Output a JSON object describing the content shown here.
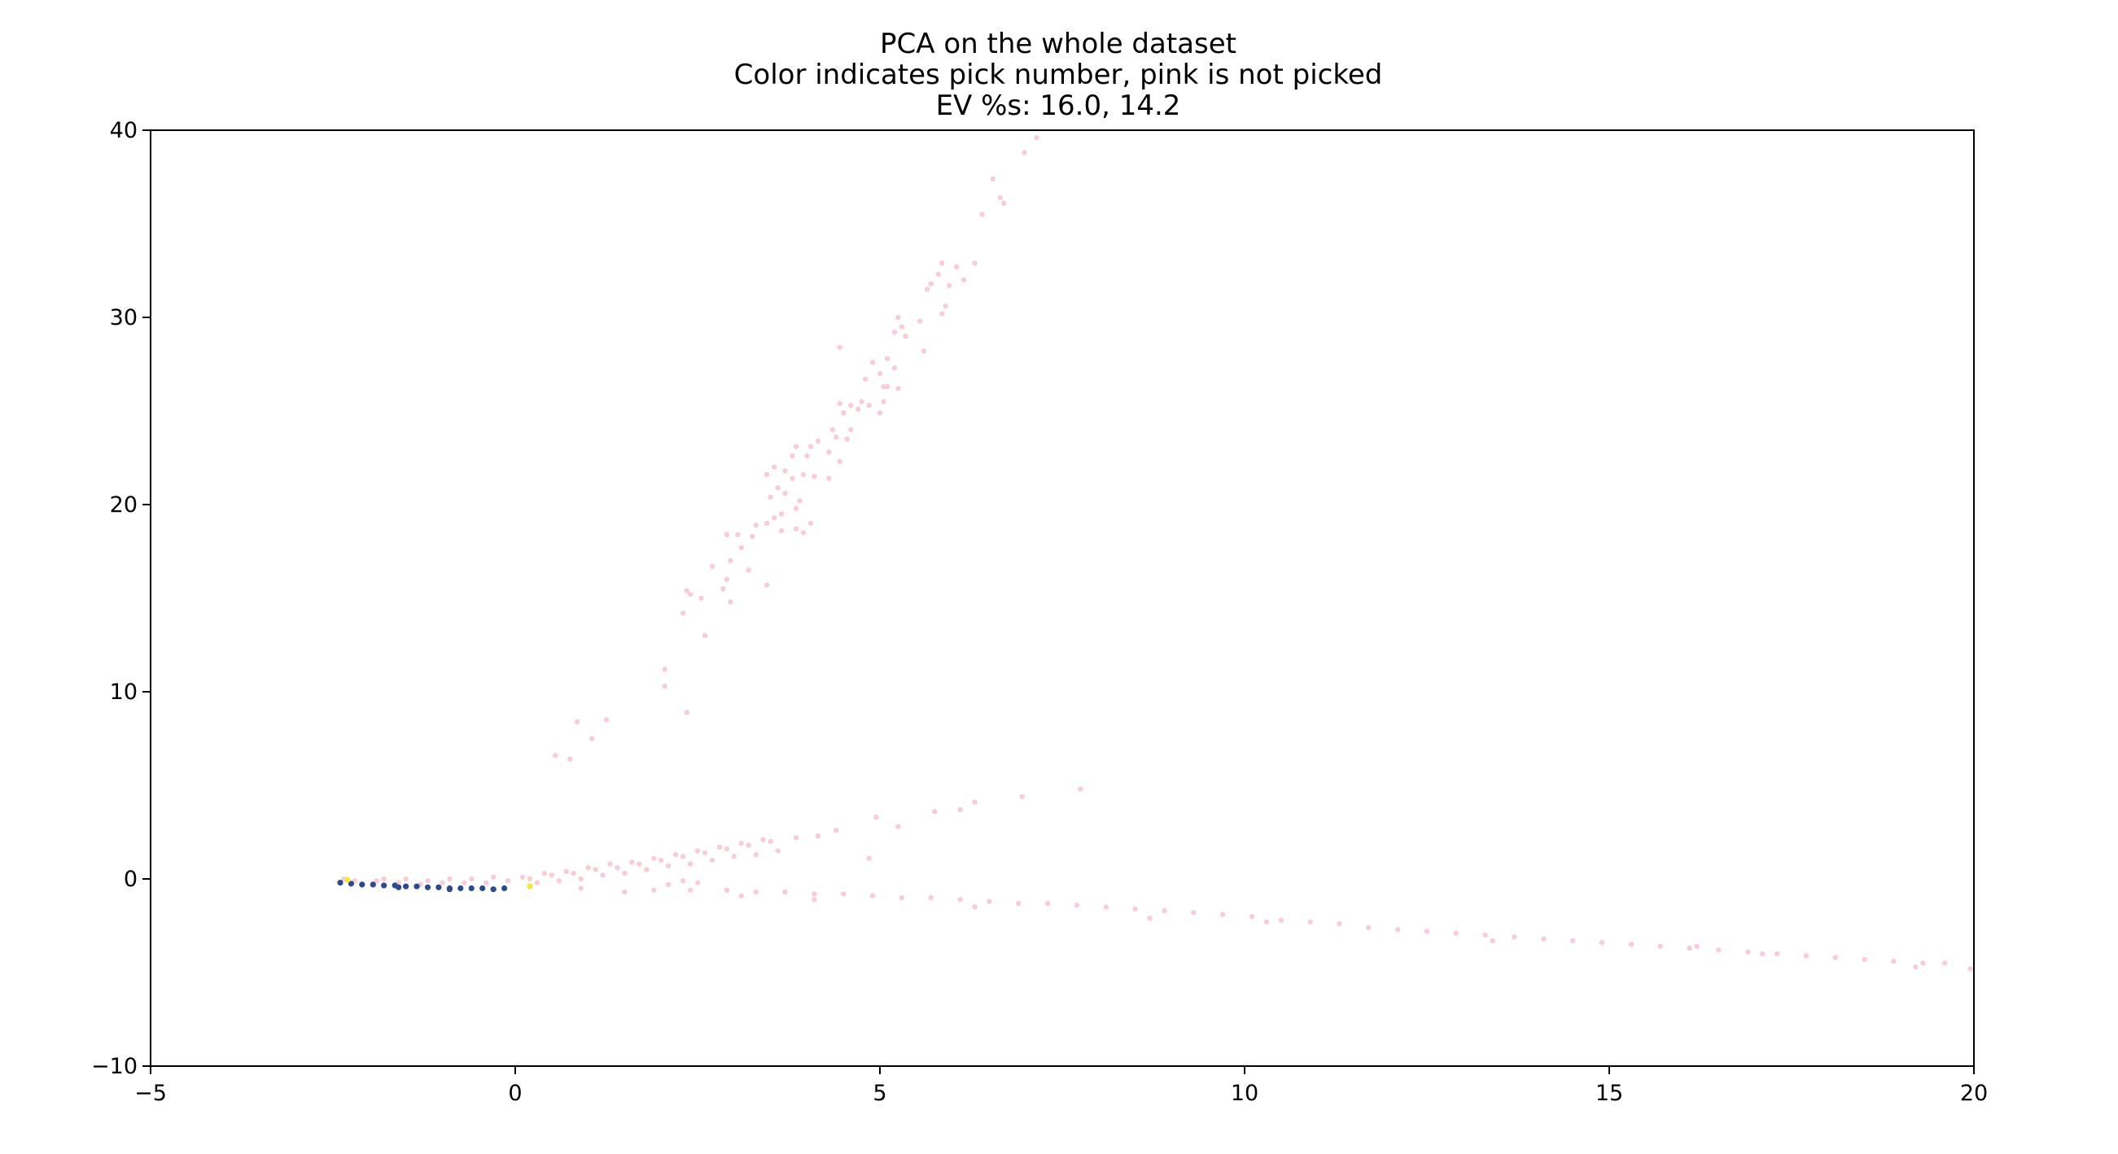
{
  "chart_data": {
    "type": "scatter",
    "title_lines": [
      "PCA on the whole dataset",
      "Color indicates pick number, pink is not picked",
      "EV %s: 16.0, 14.2"
    ],
    "xlabel": "",
    "ylabel": "",
    "xlim": [
      -5,
      20
    ],
    "ylim": [
      -10,
      40
    ],
    "x_ticks": [
      -5,
      0,
      5,
      10,
      15,
      20
    ],
    "y_ticks": [
      -10,
      0,
      10,
      20,
      30,
      40
    ],
    "x_tick_labels": [
      "−5",
      "0",
      "5",
      "10",
      "15",
      "20"
    ],
    "y_tick_labels": [
      "−10",
      "0",
      "10",
      "20",
      "30",
      "40"
    ],
    "grid": false,
    "colors": {
      "not_picked": "#f7cdd6",
      "picked_dark": "#1f2a6e",
      "picked_mid": "#2c4a8c",
      "picked_light": "#f2e53b"
    },
    "series": [
      {
        "label": "pink is not picked",
        "color": "#f7cdd6",
        "points": [
          [
            7.15,
            39.6
          ],
          [
            6.98,
            38.8
          ],
          [
            6.55,
            37.4
          ],
          [
            6.65,
            36.4
          ],
          [
            6.7,
            36.1
          ],
          [
            6.4,
            35.5
          ],
          [
            5.85,
            32.9
          ],
          [
            6.05,
            32.7
          ],
          [
            6.3,
            32.9
          ],
          [
            5.8,
            32.3
          ],
          [
            6.15,
            32.0
          ],
          [
            5.95,
            31.7
          ],
          [
            5.65,
            31.5
          ],
          [
            5.7,
            31.8
          ],
          [
            5.9,
            30.6
          ],
          [
            5.85,
            30.2
          ],
          [
            5.55,
            29.8
          ],
          [
            5.3,
            29.5
          ],
          [
            5.35,
            29.0
          ],
          [
            5.25,
            30.0
          ],
          [
            5.2,
            29.2
          ],
          [
            5.6,
            28.2
          ],
          [
            4.45,
            28.4
          ],
          [
            5.1,
            27.8
          ],
          [
            5.2,
            27.3
          ],
          [
            4.9,
            27.6
          ],
          [
            5.0,
            27.0
          ],
          [
            4.8,
            26.7
          ],
          [
            5.05,
            26.3
          ],
          [
            5.1,
            26.3
          ],
          [
            5.25,
            26.2
          ],
          [
            4.45,
            25.4
          ],
          [
            4.6,
            25.3
          ],
          [
            4.7,
            25.1
          ],
          [
            4.5,
            24.9
          ],
          [
            4.75,
            25.5
          ],
          [
            4.85,
            25.3
          ],
          [
            5.05,
            25.5
          ],
          [
            5.0,
            24.9
          ],
          [
            4.35,
            24.0
          ],
          [
            4.4,
            23.6
          ],
          [
            4.6,
            24.0
          ],
          [
            4.15,
            23.4
          ],
          [
            4.05,
            23.1
          ],
          [
            3.85,
            23.1
          ],
          [
            3.8,
            22.6
          ],
          [
            4.0,
            22.6
          ],
          [
            4.55,
            23.5
          ],
          [
            4.3,
            22.8
          ],
          [
            4.45,
            22.3
          ],
          [
            3.55,
            22.0
          ],
          [
            3.7,
            21.8
          ],
          [
            3.95,
            21.6
          ],
          [
            4.1,
            21.5
          ],
          [
            4.3,
            21.4
          ],
          [
            3.45,
            21.6
          ],
          [
            3.8,
            21.4
          ],
          [
            3.6,
            20.9
          ],
          [
            3.7,
            20.6
          ],
          [
            3.5,
            20.4
          ],
          [
            3.9,
            20.2
          ],
          [
            3.85,
            19.8
          ],
          [
            3.65,
            19.5
          ],
          [
            3.55,
            19.3
          ],
          [
            4.05,
            19.0
          ],
          [
            3.45,
            19.0
          ],
          [
            3.3,
            18.9
          ],
          [
            3.85,
            18.7
          ],
          [
            3.65,
            18.6
          ],
          [
            3.95,
            18.5
          ],
          [
            3.25,
            18.3
          ],
          [
            2.9,
            18.4
          ],
          [
            3.05,
            18.4
          ],
          [
            3.1,
            17.7
          ],
          [
            2.95,
            17.0
          ],
          [
            2.7,
            16.7
          ],
          [
            3.2,
            16.5
          ],
          [
            2.9,
            16.0
          ],
          [
            3.45,
            15.7
          ],
          [
            2.85,
            15.5
          ],
          [
            2.35,
            15.4
          ],
          [
            2.4,
            15.2
          ],
          [
            2.55,
            15.0
          ],
          [
            2.95,
            14.8
          ],
          [
            2.3,
            14.2
          ],
          [
            2.6,
            13.0
          ],
          [
            2.05,
            11.2
          ],
          [
            2.05,
            10.3
          ],
          [
            2.35,
            8.9
          ],
          [
            1.25,
            8.5
          ],
          [
            0.85,
            8.4
          ],
          [
            1.05,
            7.5
          ],
          [
            0.55,
            6.6
          ],
          [
            0.75,
            6.4
          ],
          [
            7.75,
            4.8
          ],
          [
            6.95,
            4.4
          ],
          [
            6.3,
            4.1
          ],
          [
            6.1,
            3.7
          ],
          [
            5.75,
            3.6
          ],
          [
            4.95,
            3.3
          ],
          [
            5.25,
            2.8
          ],
          [
            4.85,
            1.1
          ],
          [
            4.4,
            2.6
          ],
          [
            4.15,
            2.3
          ],
          [
            3.85,
            2.2
          ],
          [
            3.5,
            2.0
          ],
          [
            3.2,
            1.8
          ],
          [
            2.9,
            1.6
          ],
          [
            2.6,
            1.4
          ],
          [
            2.3,
            1.2
          ],
          [
            2.0,
            1.0
          ],
          [
            1.7,
            0.8
          ],
          [
            1.4,
            0.6
          ],
          [
            1.1,
            0.5
          ],
          [
            0.8,
            0.3
          ],
          [
            0.5,
            0.2
          ],
          [
            0.2,
            0.0
          ],
          [
            -0.1,
            -0.1
          ],
          [
            -0.4,
            -0.2
          ],
          [
            -0.7,
            -0.2
          ],
          [
            -1.0,
            -0.2
          ],
          [
            -1.3,
            -0.3
          ],
          [
            -1.6,
            -0.2
          ],
          [
            -1.9,
            -0.1
          ],
          [
            -2.2,
            -0.1
          ],
          [
            -2.35,
            0.0
          ],
          [
            3.6,
            1.5
          ],
          [
            3.3,
            1.3
          ],
          [
            3.0,
            1.2
          ],
          [
            2.7,
            1.0
          ],
          [
            2.4,
            0.8
          ],
          [
            2.1,
            0.7
          ],
          [
            1.8,
            0.5
          ],
          [
            1.5,
            0.3
          ],
          [
            1.2,
            0.2
          ],
          [
            0.9,
            0.0
          ],
          [
            0.6,
            -0.1
          ],
          [
            0.3,
            -0.2
          ],
          [
            3.4,
            2.1
          ],
          [
            3.1,
            1.9
          ],
          [
            2.8,
            1.7
          ],
          [
            2.5,
            1.5
          ],
          [
            2.2,
            1.3
          ],
          [
            1.9,
            1.1
          ],
          [
            1.6,
            0.9
          ],
          [
            1.3,
            0.8
          ],
          [
            1.0,
            0.6
          ],
          [
            0.7,
            0.4
          ],
          [
            0.4,
            0.3
          ],
          [
            0.1,
            0.1
          ],
          [
            -0.3,
            0.1
          ],
          [
            -0.6,
            0.0
          ],
          [
            -0.9,
            0.0
          ],
          [
            -1.2,
            -0.1
          ],
          [
            -1.5,
            0.0
          ],
          [
            -1.8,
            0.0
          ],
          [
            0.9,
            -0.5
          ],
          [
            1.5,
            -0.7
          ],
          [
            1.9,
            -0.6
          ],
          [
            2.1,
            -0.3
          ],
          [
            2.5,
            -0.2
          ],
          [
            2.4,
            -0.6
          ],
          [
            2.9,
            -0.6
          ],
          [
            3.3,
            -0.7
          ],
          [
            3.7,
            -0.7
          ],
          [
            4.1,
            -0.8
          ],
          [
            4.5,
            -0.8
          ],
          [
            4.9,
            -0.9
          ],
          [
            5.3,
            -1.0
          ],
          [
            5.7,
            -1.0
          ],
          [
            6.1,
            -1.1
          ],
          [
            6.5,
            -1.2
          ],
          [
            6.9,
            -1.3
          ],
          [
            7.3,
            -1.3
          ],
          [
            7.7,
            -1.4
          ],
          [
            8.1,
            -1.5
          ],
          [
            8.5,
            -1.6
          ],
          [
            8.9,
            -1.7
          ],
          [
            9.3,
            -1.8
          ],
          [
            9.7,
            -1.9
          ],
          [
            10.1,
            -2.0
          ],
          [
            10.5,
            -2.2
          ],
          [
            10.9,
            -2.3
          ],
          [
            11.3,
            -2.4
          ],
          [
            11.7,
            -2.6
          ],
          [
            12.1,
            -2.7
          ],
          [
            12.5,
            -2.8
          ],
          [
            12.9,
            -2.9
          ],
          [
            13.3,
            -3.0
          ],
          [
            13.7,
            -3.1
          ],
          [
            14.1,
            -3.2
          ],
          [
            14.5,
            -3.3
          ],
          [
            14.9,
            -3.4
          ],
          [
            15.3,
            -3.5
          ],
          [
            15.7,
            -3.6
          ],
          [
            16.1,
            -3.7
          ],
          [
            16.5,
            -3.8
          ],
          [
            16.9,
            -3.9
          ],
          [
            17.3,
            -4.0
          ],
          [
            17.7,
            -4.1
          ],
          [
            18.1,
            -4.2
          ],
          [
            18.5,
            -4.3
          ],
          [
            18.9,
            -4.4
          ],
          [
            19.3,
            -4.5
          ],
          [
            19.6,
            -4.5
          ],
          [
            19.95,
            -4.8
          ],
          [
            19.2,
            -4.7
          ],
          [
            17.1,
            -4.0
          ],
          [
            16.2,
            -3.6
          ],
          [
            13.4,
            -3.3
          ],
          [
            10.3,
            -2.3
          ],
          [
            8.7,
            -2.1
          ],
          [
            6.3,
            -1.5
          ],
          [
            4.1,
            -1.1
          ],
          [
            3.1,
            -0.9
          ],
          [
            2.3,
            -0.1
          ]
        ]
      },
      {
        "label": "picked",
        "color": "#2c4a8c",
        "points": [
          [
            -2.4,
            -0.2
          ],
          [
            -2.25,
            -0.25
          ],
          [
            -2.1,
            -0.3
          ],
          [
            -1.95,
            -0.3
          ],
          [
            -1.8,
            -0.35
          ],
          [
            -1.65,
            -0.35
          ],
          [
            -1.5,
            -0.4
          ],
          [
            -1.35,
            -0.4
          ],
          [
            -1.2,
            -0.45
          ],
          [
            -1.05,
            -0.45
          ],
          [
            -0.9,
            -0.5
          ],
          [
            -0.75,
            -0.5
          ],
          [
            -0.6,
            -0.5
          ],
          [
            -0.45,
            -0.5
          ],
          [
            -0.3,
            -0.55
          ],
          [
            -0.15,
            -0.5
          ],
          [
            -0.9,
            -0.55
          ],
          [
            -1.6,
            -0.45
          ]
        ]
      },
      {
        "label": "picked",
        "color": "#f2e53b",
        "points": [
          [
            0.2,
            -0.4
          ],
          [
            -2.3,
            -0.05
          ]
        ]
      }
    ]
  }
}
